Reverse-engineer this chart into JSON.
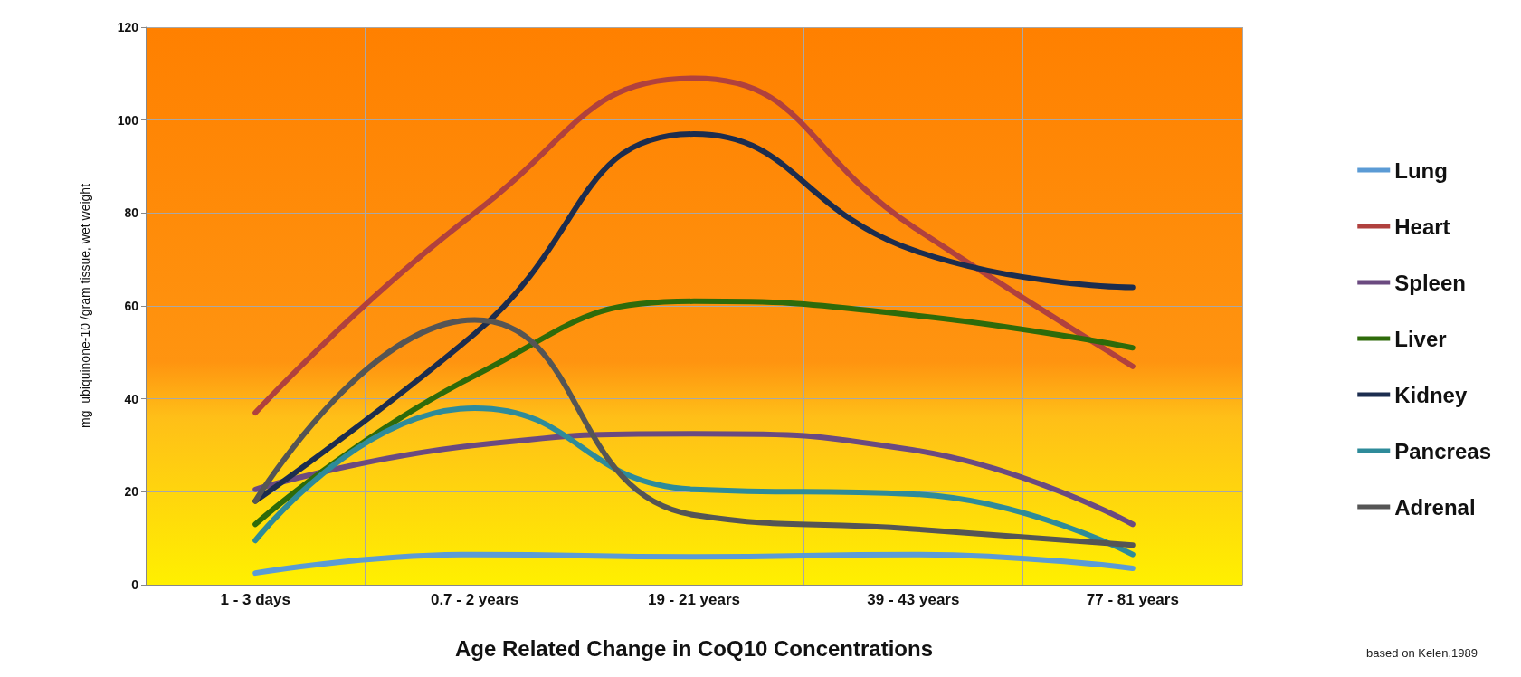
{
  "chart_data": {
    "type": "line",
    "xlabel": "Age Related Change in CoQ10 Concentrations",
    "ylabel": "mg  ubiquinone-10 /gram tissue, wet weight",
    "categories": [
      "1 - 3 days",
      "0.7 - 2 years",
      "19 - 21 years",
      "39 - 43 years",
      "77 - 81 years"
    ],
    "series": [
      {
        "name": "Lung",
        "color": "#5b9bd5",
        "values": [
          2.5,
          6.5,
          6,
          6.5,
          3.5
        ]
      },
      {
        "name": "Heart",
        "color": "#b0413e",
        "values": [
          37,
          80,
          109,
          77,
          47
        ]
      },
      {
        "name": "Spleen",
        "color": "#6b4a80",
        "values": [
          20.5,
          30,
          32.5,
          29,
          13
        ]
      },
      {
        "name": "Liver",
        "color": "#2e6b0a",
        "values": [
          13,
          45,
          61,
          58,
          51
        ]
      },
      {
        "name": "Kidney",
        "color": "#1c2d4f",
        "values": [
          18,
          54,
          97,
          72,
          64
        ]
      },
      {
        "name": "Pancreas",
        "color": "#2e8b9a",
        "values": [
          9.5,
          38,
          20.5,
          19.5,
          6.5
        ]
      },
      {
        "name": "Adrenal",
        "color": "#555555",
        "values": [
          18,
          57,
          15,
          12,
          8.5
        ]
      }
    ],
    "ylim": [
      0,
      120
    ],
    "yticks": [
      0,
      20,
      40,
      60,
      80,
      100,
      120
    ],
    "grid": true,
    "legend": "right",
    "marker": "none",
    "line_style": "solid",
    "annotations": [
      "based on Kelen,1989"
    ]
  }
}
